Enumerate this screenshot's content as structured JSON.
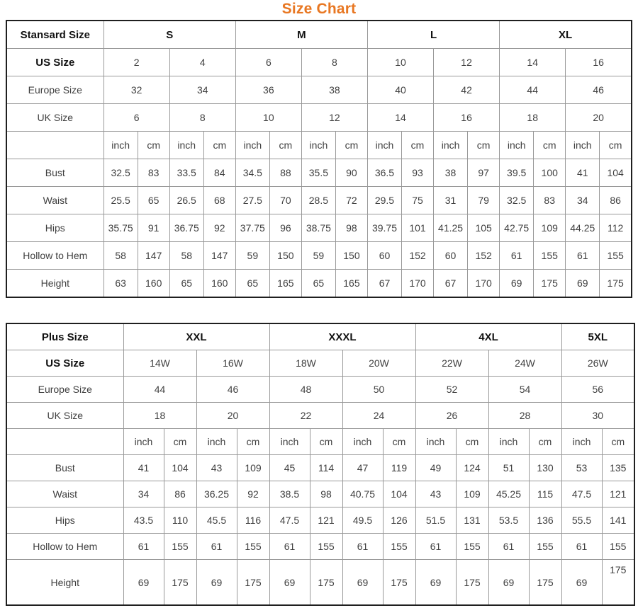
{
  "title": {
    "text": "Size Chart"
  },
  "colors": {
    "title": "#e87722",
    "border_outer": "#1f1f1f",
    "border_inner": "#999999",
    "text": "#3f3f3f",
    "header_text": "#111111"
  },
  "tables": [
    {
      "id": "standard",
      "name": "standard-size-table",
      "label_col_width": 137,
      "inch_col_width": 48,
      "cm_col_width": 45,
      "tall_last_row": false,
      "raise_last_value": false,
      "size_header": {
        "label": "Stansard Size",
        "sizes": [
          {
            "label": "S",
            "pairs": 2
          },
          {
            "label": "M",
            "pairs": 2
          },
          {
            "label": "L",
            "pairs": 2
          },
          {
            "label": "XL",
            "pairs": 2
          }
        ]
      },
      "size_rows": [
        {
          "label": "US Size",
          "bold": true,
          "values": [
            "2",
            "4",
            "6",
            "8",
            "10",
            "12",
            "14",
            "16"
          ]
        },
        {
          "label": "Europe Size",
          "bold": false,
          "values": [
            "32",
            "34",
            "36",
            "38",
            "40",
            "42",
            "44",
            "46"
          ]
        },
        {
          "label": "UK Size",
          "bold": false,
          "values": [
            "6",
            "8",
            "10",
            "12",
            "14",
            "16",
            "18",
            "20"
          ]
        }
      ],
      "units": [
        "inch",
        "cm"
      ],
      "measurement_rows": [
        {
          "label": "Bust",
          "values": [
            "32.5",
            "83",
            "33.5",
            "84",
            "34.5",
            "88",
            "35.5",
            "90",
            "36.5",
            "93",
            "38",
            "97",
            "39.5",
            "100",
            "41",
            "104"
          ]
        },
        {
          "label": "Waist",
          "values": [
            "25.5",
            "65",
            "26.5",
            "68",
            "27.5",
            "70",
            "28.5",
            "72",
            "29.5",
            "75",
            "31",
            "79",
            "32.5",
            "83",
            "34",
            "86"
          ]
        },
        {
          "label": "Hips",
          "values": [
            "35.75",
            "91",
            "36.75",
            "92",
            "37.75",
            "96",
            "38.75",
            "98",
            "39.75",
            "101",
            "41.25",
            "105",
            "42.75",
            "109",
            "44.25",
            "112"
          ]
        },
        {
          "label": "Hollow to Hem",
          "values": [
            "58",
            "147",
            "58",
            "147",
            "59",
            "150",
            "59",
            "150",
            "60",
            "152",
            "60",
            "152",
            "61",
            "155",
            "61",
            "155"
          ]
        },
        {
          "label": "Height",
          "values": [
            "63",
            "160",
            "65",
            "160",
            "65",
            "165",
            "65",
            "165",
            "67",
            "170",
            "67",
            "170",
            "69",
            "175",
            "69",
            "175"
          ]
        }
      ]
    },
    {
      "id": "plus",
      "name": "plus-size-table",
      "label_col_width": 165,
      "inch_col_width": 57,
      "cm_col_width": 46,
      "tall_last_row": true,
      "raise_last_value": true,
      "size_header": {
        "label": "Plus Size",
        "sizes": [
          {
            "label": "XXL",
            "pairs": 2
          },
          {
            "label": "XXXL",
            "pairs": 2
          },
          {
            "label": "4XL",
            "pairs": 2
          },
          {
            "label": "5XL",
            "pairs": 1
          }
        ]
      },
      "size_rows": [
        {
          "label": "US Size",
          "bold": true,
          "values": [
            "14W",
            "16W",
            "18W",
            "20W",
            "22W",
            "24W",
            "26W"
          ]
        },
        {
          "label": "Europe Size",
          "bold": false,
          "values": [
            "44",
            "46",
            "48",
            "50",
            "52",
            "54",
            "56"
          ]
        },
        {
          "label": "UK Size",
          "bold": false,
          "values": [
            "18",
            "20",
            "22",
            "24",
            "26",
            "28",
            "30"
          ]
        }
      ],
      "units": [
        "inch",
        "cm"
      ],
      "measurement_rows": [
        {
          "label": "Bust",
          "values": [
            "41",
            "104",
            "43",
            "109",
            "45",
            "114",
            "47",
            "119",
            "49",
            "124",
            "51",
            "130",
            "53",
            "135"
          ]
        },
        {
          "label": "Waist",
          "values": [
            "34",
            "86",
            "36.25",
            "92",
            "38.5",
            "98",
            "40.75",
            "104",
            "43",
            "109",
            "45.25",
            "115",
            "47.5",
            "121"
          ]
        },
        {
          "label": "Hips",
          "values": [
            "43.5",
            "110",
            "45.5",
            "116",
            "47.5",
            "121",
            "49.5",
            "126",
            "51.5",
            "131",
            "53.5",
            "136",
            "55.5",
            "141"
          ]
        },
        {
          "label": "Hollow to Hem",
          "values": [
            "61",
            "155",
            "61",
            "155",
            "61",
            "155",
            "61",
            "155",
            "61",
            "155",
            "61",
            "155",
            "61",
            "155"
          ]
        },
        {
          "label": "Height",
          "values": [
            "69",
            "175",
            "69",
            "175",
            "69",
            "175",
            "69",
            "175",
            "69",
            "175",
            "69",
            "175",
            "69",
            "175"
          ]
        }
      ]
    }
  ]
}
